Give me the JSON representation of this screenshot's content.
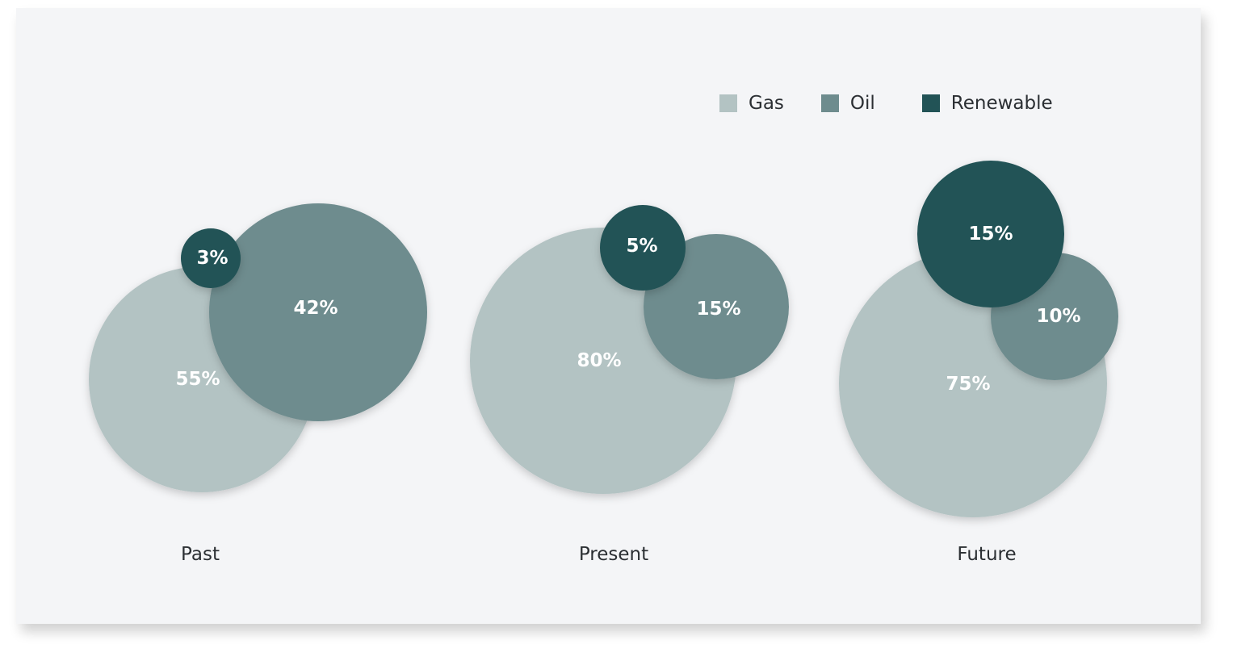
{
  "chart_data": {
    "type": "bubble",
    "title": "",
    "categories": [
      "Past",
      "Present",
      "Future"
    ],
    "series": [
      {
        "name": "Gas",
        "color": "#b3c3c3",
        "values": [
          55,
          80,
          75
        ],
        "labels": [
          "55%",
          "80%",
          "75%"
        ]
      },
      {
        "name": "Oil",
        "color": "#6e8c8e",
        "values": [
          42,
          15,
          10
        ],
        "labels": [
          "42%",
          "15%",
          "10%"
        ]
      },
      {
        "name": "Renewable",
        "color": "#225356",
        "values": [
          3,
          5,
          15
        ],
        "labels": [
          "3%",
          "5%",
          "15%"
        ]
      }
    ],
    "legend_placement": "top-right",
    "grid": false
  }
}
